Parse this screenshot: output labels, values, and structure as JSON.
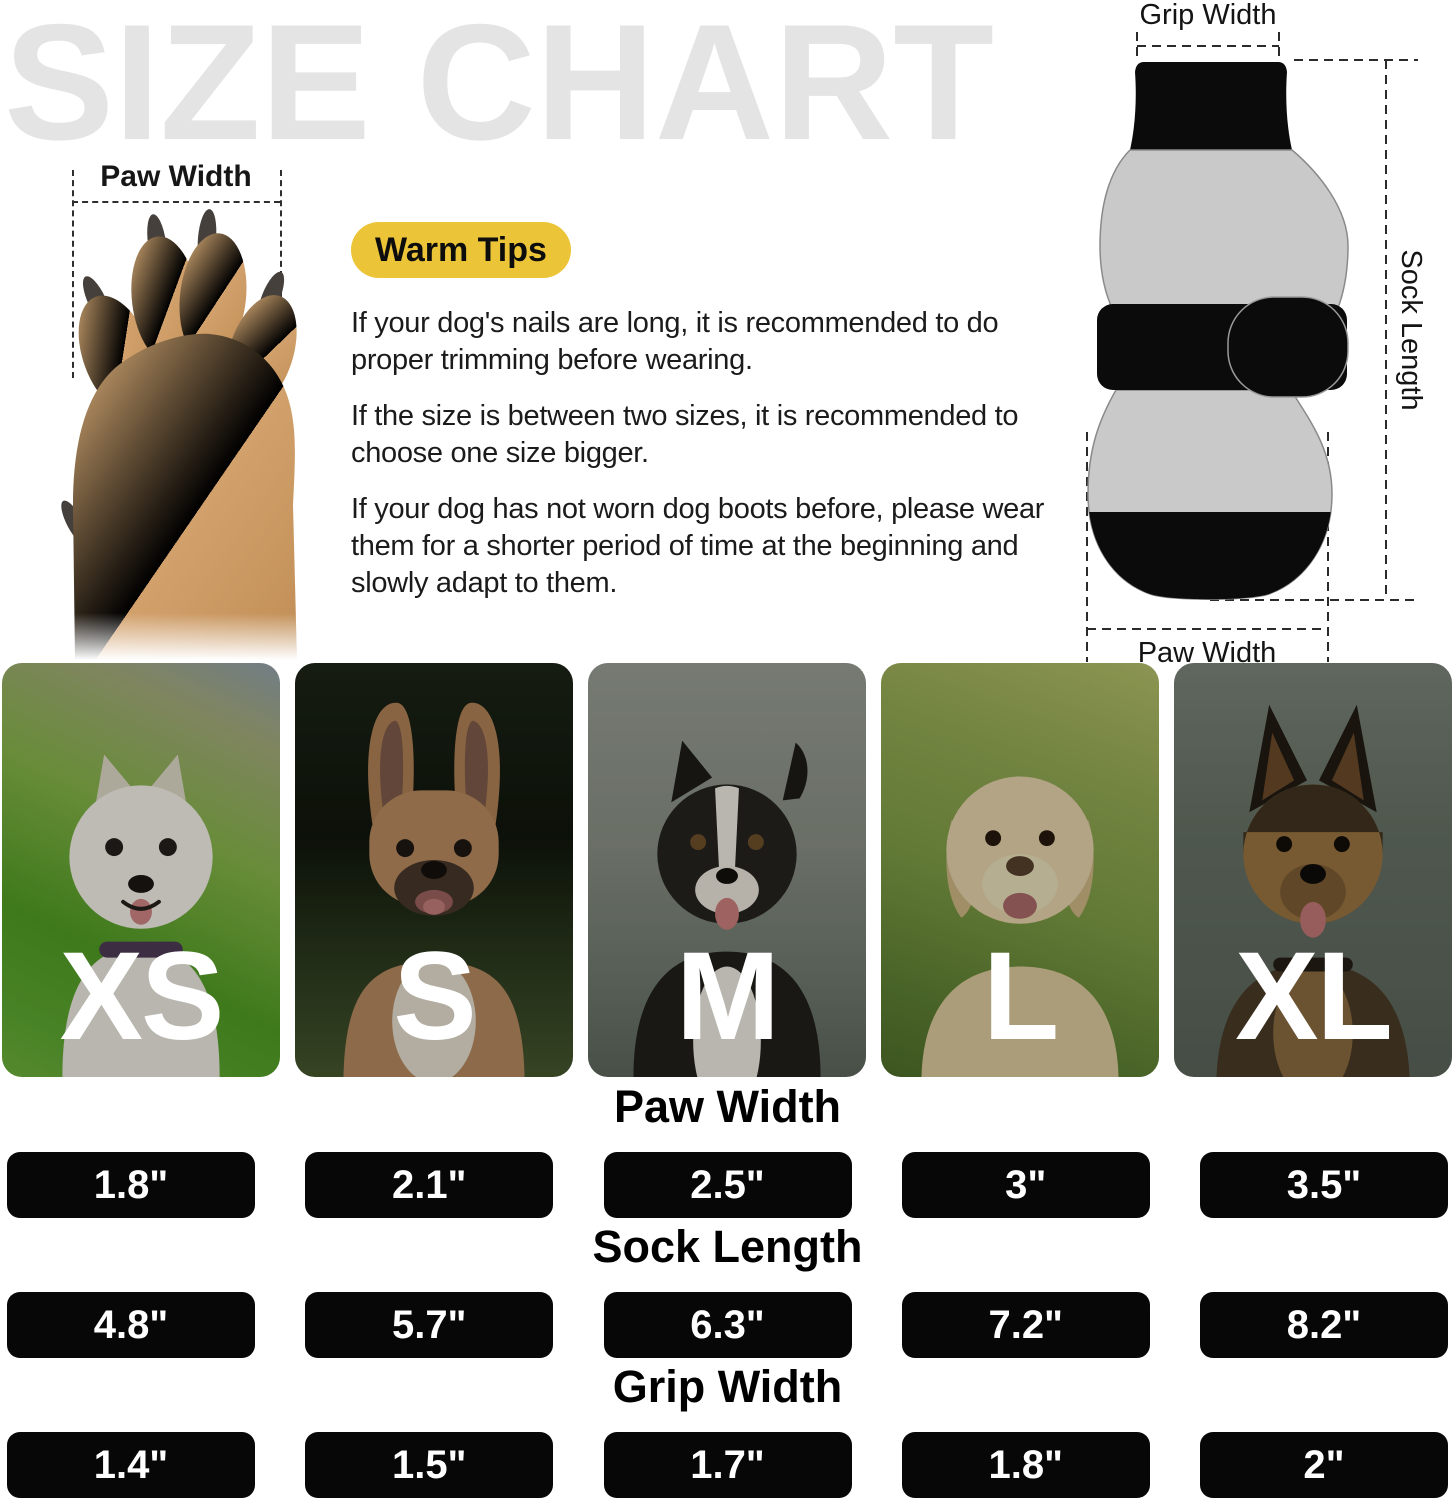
{
  "title": "SIZE CHART",
  "colors": {
    "accent_yellow": "#ecc437",
    "cell_black": "#070707",
    "title_gray": "#e4e4e4",
    "sock_gray": "#c9c9c9"
  },
  "paw_photo": {
    "image": "dog-paw-top-view-photo",
    "measure_label": "Paw Width"
  },
  "warm_tips": {
    "badge_label": "Warm Tips",
    "paragraphs": [
      "If your dog's nails are long, it is recommended to do proper trimming before wearing.",
      "If the size is between two sizes, it is recommended to choose one size bigger.",
      "If your dog has not worn dog boots before, please wear them for a shorter period of time at the beginning and slowly adapt to them."
    ]
  },
  "sock_diagram": {
    "image": "dog-sock-with-strap-diagram",
    "grip_width_label": "Grip Width",
    "sock_length_label": "Sock Length",
    "paw_width_label": "Paw Width"
  },
  "size_cards": [
    {
      "label": "XS",
      "photo": "west-highland-terrier-photo"
    },
    {
      "label": "S",
      "photo": "french-bulldog-photo"
    },
    {
      "label": "M",
      "photo": "border-collie-photo"
    },
    {
      "label": "L",
      "photo": "labrador-retriever-photo"
    },
    {
      "label": "XL",
      "photo": "german-shepherd-photo"
    }
  ],
  "size_table": [
    {
      "header": "Paw Width",
      "values": [
        "1.8\"",
        "2.1\"",
        "2.5\"",
        "3\"",
        "3.5\""
      ]
    },
    {
      "header": "Sock Length",
      "values": [
        "4.8\"",
        "5.7\"",
        "6.3\"",
        "7.2\"",
        "8.2\""
      ]
    },
    {
      "header": "Grip Width",
      "values": [
        "1.4\"",
        "1.5\"",
        "1.7\"",
        "1.8\"",
        "2\""
      ]
    }
  ]
}
